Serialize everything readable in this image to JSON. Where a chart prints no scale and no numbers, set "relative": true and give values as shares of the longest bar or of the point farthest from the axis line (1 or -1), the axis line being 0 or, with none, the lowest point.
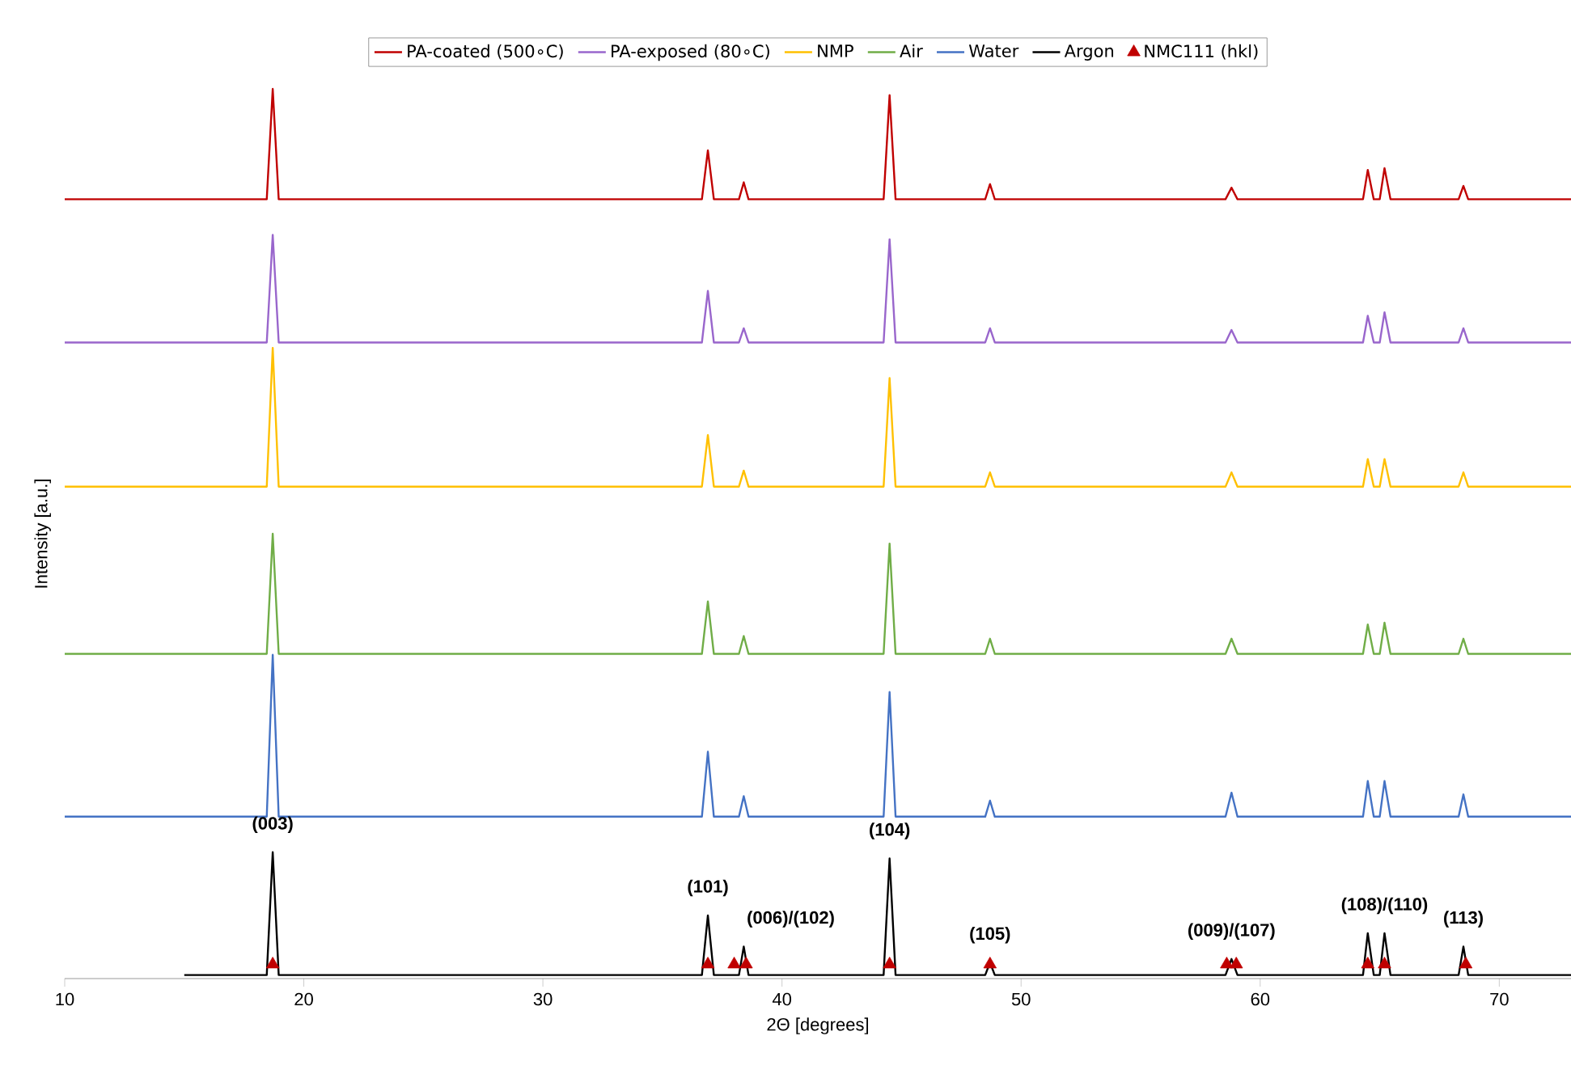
{
  "chart_data": {
    "type": "line",
    "relative": true,
    "xlabel": "2Θ [degrees]",
    "ylabel": "Intensity [a.u.]",
    "xlim": [
      10,
      73
    ],
    "xticks": [
      10,
      20,
      30,
      40,
      50,
      60,
      70
    ],
    "legend": "top",
    "grid": false,
    "marker": "none",
    "line_style": "solid",
    "x": [
      10,
      18.45,
      18.7,
      18.95,
      36.65,
      36.9,
      37.15,
      38.2,
      38.4,
      38.6,
      44.25,
      44.5,
      44.75,
      48.5,
      48.7,
      48.9,
      58.55,
      58.8,
      59.05,
      64.3,
      64.5,
      64.75,
      65.0,
      65.2,
      65.45,
      68.3,
      68.5,
      68.7,
      73
    ],
    "series": [
      {
        "name": "PA-coated (500∘C)",
        "color": "#c00000",
        "values": [
          0.876,
          0.876,
          1.0,
          0.876,
          0.876,
          0.931,
          0.876,
          0.876,
          0.895,
          0.876,
          0.876,
          0.993,
          0.876,
          0.876,
          0.893,
          0.876,
          0.876,
          0.889,
          0.876,
          0.876,
          0.909,
          0.876,
          0.876,
          0.911,
          0.876,
          0.876,
          0.891,
          0.876,
          0.876
        ]
      },
      {
        "name": "PA-exposed (80∘C)",
        "color": "#9966cc",
        "values": [
          0.715,
          0.715,
          0.836,
          0.715,
          0.715,
          0.773,
          0.715,
          0.715,
          0.731,
          0.715,
          0.715,
          0.831,
          0.715,
          0.715,
          0.731,
          0.715,
          0.715,
          0.729,
          0.715,
          0.715,
          0.745,
          0.715,
          0.715,
          0.749,
          0.715,
          0.715,
          0.731,
          0.715,
          0.715
        ]
      },
      {
        "name": "NMP",
        "color": "#ffc000",
        "values": [
          0.553,
          0.553,
          0.709,
          0.553,
          0.553,
          0.611,
          0.553,
          0.553,
          0.571,
          0.553,
          0.553,
          0.675,
          0.553,
          0.553,
          0.569,
          0.553,
          0.553,
          0.569,
          0.553,
          0.553,
          0.584,
          0.553,
          0.553,
          0.584,
          0.553,
          0.553,
          0.569,
          0.553,
          0.553
        ]
      },
      {
        "name": "Air",
        "color": "#70ad47",
        "values": [
          0.365,
          0.365,
          0.5,
          0.365,
          0.365,
          0.424,
          0.365,
          0.365,
          0.385,
          0.365,
          0.365,
          0.489,
          0.365,
          0.365,
          0.382,
          0.365,
          0.365,
          0.382,
          0.365,
          0.365,
          0.398,
          0.365,
          0.365,
          0.4,
          0.365,
          0.365,
          0.382,
          0.365,
          0.365
        ]
      },
      {
        "name": "Water",
        "color": "#4472c4",
        "values": [
          0.182,
          0.182,
          0.364,
          0.182,
          0.182,
          0.255,
          0.182,
          0.182,
          0.205,
          0.182,
          0.182,
          0.322,
          0.182,
          0.182,
          0.2,
          0.182,
          0.182,
          0.209,
          0.182,
          0.182,
          0.222,
          0.182,
          0.182,
          0.222,
          0.182,
          0.182,
          0.207,
          0.182,
          0.182
        ]
      },
      {
        "name": "Argon",
        "color": "#000000",
        "x": [
          15,
          18.45,
          18.7,
          18.95,
          36.65,
          36.9,
          37.15,
          38.2,
          38.4,
          38.6,
          44.25,
          44.5,
          44.75,
          48.5,
          48.7,
          48.9,
          58.55,
          58.8,
          59.05,
          64.3,
          64.5,
          64.75,
          65.0,
          65.2,
          65.45,
          68.3,
          68.5,
          68.7,
          73
        ],
        "values": [
          0.004,
          0.004,
          0.142,
          0.004,
          0.004,
          0.071,
          0.004,
          0.004,
          0.036,
          0.004,
          0.004,
          0.135,
          0.004,
          0.004,
          0.018,
          0.004,
          0.004,
          0.022,
          0.004,
          0.004,
          0.051,
          0.004,
          0.004,
          0.051,
          0.004,
          0.004,
          0.036,
          0.004,
          0.004
        ]
      },
      {
        "name": "NMC111 (hkl)",
        "type": "scatter",
        "marker": "triangle",
        "color": "#c00000",
        "x": [
          18.7,
          36.9,
          38.0,
          38.5,
          44.5,
          48.7,
          58.6,
          59.0,
          64.5,
          65.2,
          68.6
        ],
        "values": [
          0.016,
          0.016,
          0.016,
          0.016,
          0.016,
          0.016,
          0.016,
          0.016,
          0.016,
          0.016,
          0.016
        ]
      }
    ],
    "annotations": [
      {
        "text": "(003)",
        "x": 18.7,
        "y": 0.142
      },
      {
        "text": "(101)",
        "x": 36.9,
        "y": 0.071
      },
      {
        "text": "(006)/(102)",
        "x": 38.4,
        "y": 0.036
      },
      {
        "text": "(104)",
        "x": 44.5,
        "y": 0.135
      },
      {
        "text": "(105)",
        "x": 48.7,
        "y": 0.018
      },
      {
        "text": "(009)/(107)",
        "x": 58.8,
        "y": 0.022
      },
      {
        "text": "(108)/(110)",
        "x": 65.2,
        "y": 0.051
      },
      {
        "text": "(113)",
        "x": 68.5,
        "y": 0.036
      }
    ]
  }
}
